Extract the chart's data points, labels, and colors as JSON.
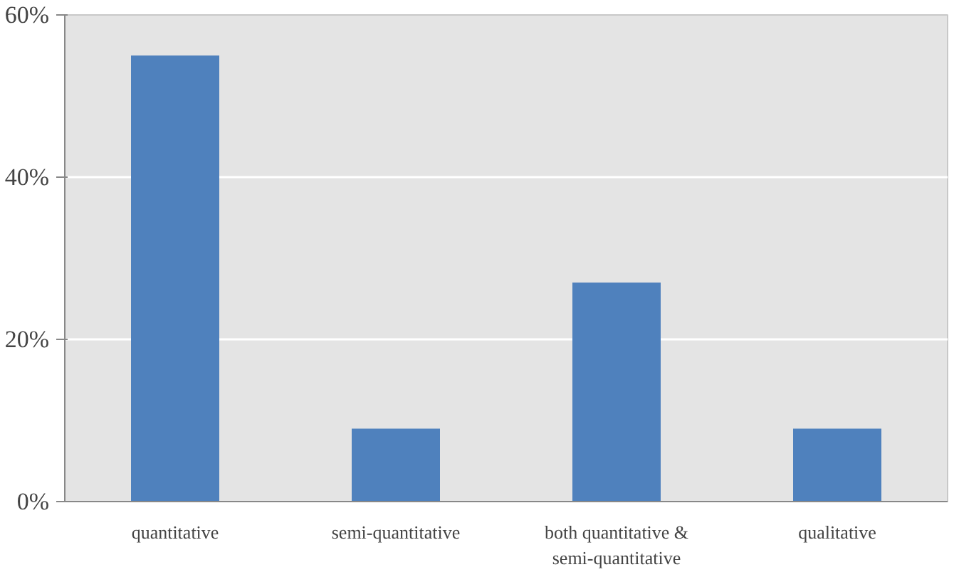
{
  "chart_data": {
    "type": "bar",
    "categories": [
      "quantitative",
      "semi-quantitative",
      "both quantitative & semi-quantitative",
      "qualitative"
    ],
    "values": [
      55,
      9,
      27,
      9
    ],
    "color": "#4f81bd",
    "ylim": [
      0,
      60
    ],
    "yticks": [
      {
        "value": 0,
        "label": "0%"
      },
      {
        "value": 20,
        "label": "20%"
      },
      {
        "value": 40,
        "label": "40%"
      },
      {
        "value": 60,
        "label": "60%"
      }
    ],
    "grid": "y"
  }
}
